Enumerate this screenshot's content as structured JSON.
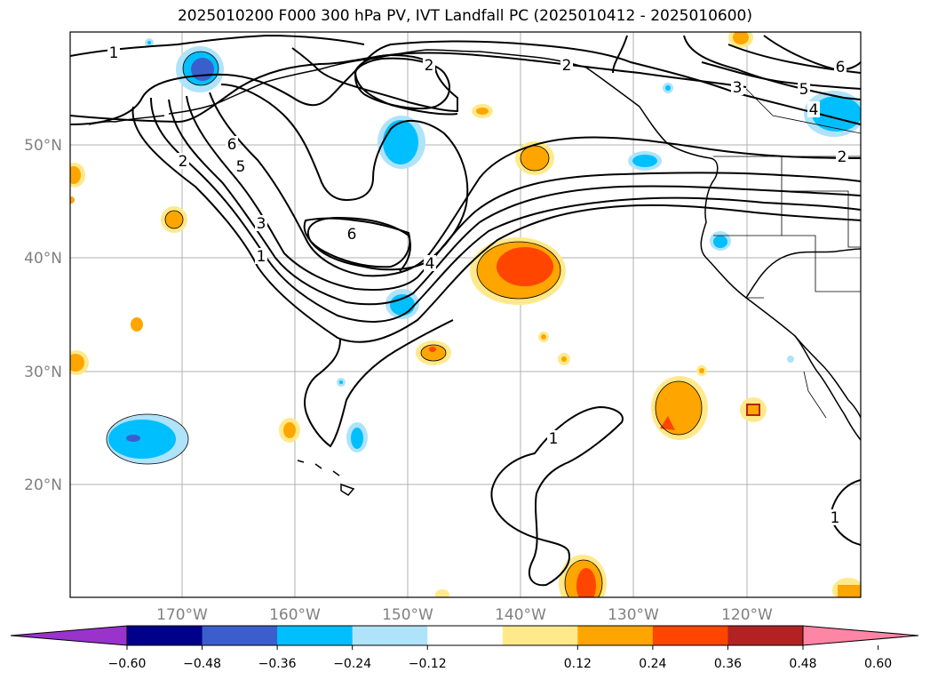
{
  "title": "2025010200 F000 300 hPa PV, IVT Landfall PC (2025010412 - 2025010600)",
  "lat_labels": [
    "50°N",
    "40°N",
    "30°N",
    "20°N"
  ],
  "lon_labels": [
    "170°W",
    "160°W",
    "150°W",
    "140°W",
    "130°W",
    "120°W"
  ],
  "contour_labels": [
    "1",
    "2",
    "2",
    "6",
    "5",
    "2",
    "3",
    "1",
    "6",
    "4",
    "3",
    "5",
    "4",
    "6",
    "2",
    "1",
    "1"
  ],
  "colorbar": {
    "ticks": [
      "−0.60",
      "−0.48",
      "−0.36",
      "−0.24",
      "−0.12",
      "0.12",
      "0.24",
      "0.36",
      "0.48",
      "0.60"
    ],
    "colors": [
      "#9933cc",
      "#00008b",
      "#3a5fcd",
      "#00bfff",
      "#aee3fa",
      "#ffffff",
      "#ffe98a",
      "#ffa500",
      "#ff4500",
      "#b22222",
      "#ff85a5"
    ]
  }
}
